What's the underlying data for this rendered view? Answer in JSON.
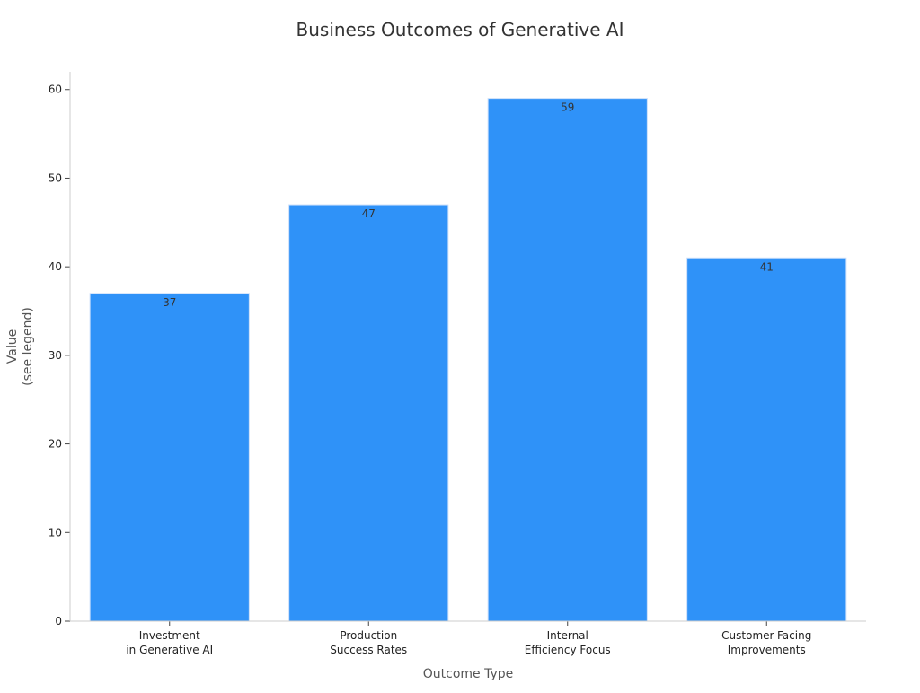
{
  "chart_data": {
    "type": "bar",
    "title": "Business Outcomes of Generative AI",
    "xlabel": "Outcome Type",
    "ylabel": [
      "Value",
      "(see legend)"
    ],
    "categories": [
      [
        "Investment",
        "in Generative AI"
      ],
      [
        "Production",
        "Success Rates"
      ],
      [
        "Internal",
        "Efficiency Focus"
      ],
      [
        "Customer-Facing",
        "Improvements"
      ]
    ],
    "values": [
      37,
      47,
      59,
      41
    ],
    "data_labels": [
      "37",
      "47",
      "59",
      "41"
    ],
    "ylim": [
      0,
      62
    ],
    "yticks": [
      0,
      10,
      20,
      30,
      40,
      50,
      60
    ],
    "ytick_labels": [
      "0",
      "10",
      "20",
      "30",
      "40",
      "50",
      "60"
    ],
    "grid": false,
    "colors": {
      "bar": "#2f92f8",
      "bar_edge": "#c9defa",
      "axis": "#cccccc",
      "title": "#333333",
      "label": "#555555",
      "tick": "#222222",
      "data_label": "#333333"
    }
  }
}
